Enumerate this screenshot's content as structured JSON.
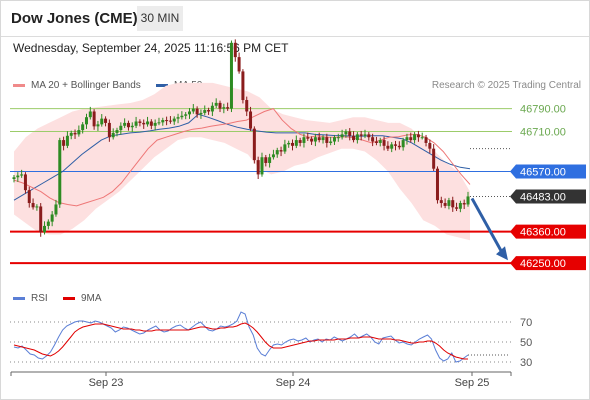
{
  "header": {
    "title": "Dow Jones (CME)",
    "timeframe": "30 MIN"
  },
  "datetime": "Wednesday, September 24, 2025 11:16:56 PM CET",
  "credit": "Research © 2025 Trading Central",
  "legend": [
    {
      "label": "MA 20 + Bollinger Bands",
      "color": "#f08a8a"
    },
    {
      "label": "MA 50",
      "color": "#2f5fa6"
    }
  ],
  "rsi_legend": [
    {
      "label": "RSI",
      "color": "#5b7fd6"
    },
    {
      "label": "9MA",
      "color": "#e00000"
    }
  ],
  "colors": {
    "bull": "#2e8b22",
    "bear": "#8a1c1c",
    "res_line": "#9ccc6a",
    "pivot": "#2f6fe0",
    "support": "#e60000",
    "bb_fill": "#fde0e0",
    "ma20": "#ee7777",
    "ma50": "#2f5fa6",
    "rsi": "#5b7fd6",
    "rsi_ma": "#e00000",
    "arrow": "#2f5fa6",
    "last": "#333333"
  },
  "chart_data": [
    {
      "type": "candlestick",
      "ylim": [
        46170,
        46890
      ],
      "x_labels": [
        "Sep 23",
        "Sep 24",
        "Sep 25"
      ],
      "levels": [
        {
          "label": "46790.00",
          "value": 46790,
          "kind": "resistance"
        },
        {
          "label": "46710.00",
          "value": 46710,
          "kind": "resistance"
        },
        {
          "label": "46570.00",
          "value": 46570,
          "kind": "pivot"
        },
        {
          "label": "46483.00",
          "value": 46483,
          "kind": "last"
        },
        {
          "label": "46360.00",
          "value": 46360,
          "kind": "support"
        },
        {
          "label": "46250.00",
          "value": 46250,
          "kind": "support"
        }
      ],
      "price": [
        46550,
        46556,
        46560,
        46505,
        46460,
        46445,
        46448,
        46358,
        46380,
        46395,
        46420,
        46455,
        46680,
        46660,
        46695,
        46705,
        46700,
        46715,
        46735,
        46760,
        46780,
        46728,
        46735,
        46755,
        46740,
        46690,
        46705,
        46715,
        46730,
        46740,
        46725,
        46730,
        46745,
        46740,
        46735,
        46745,
        46730,
        46740,
        46742,
        46750,
        46748,
        46745,
        46755,
        46760,
        46765,
        46770,
        46780,
        46790,
        46770,
        46775,
        46785,
        46780,
        46800,
        46810,
        46790,
        46795,
        46790,
        47020,
        46970,
        46920,
        46820,
        46780,
        46720,
        46610,
        46560,
        46620,
        46600,
        46620,
        46630,
        46645,
        46640,
        46665,
        46670,
        46660,
        46680,
        46670,
        46690,
        46685,
        46675,
        46690,
        46680,
        46690,
        46670,
        46675,
        46690,
        46690,
        46700,
        46710,
        46695,
        46680,
        46700,
        46695,
        46700,
        46690,
        46675,
        46670,
        46680,
        46660,
        46650,
        46665,
        46660,
        46655,
        46680,
        46690,
        46680,
        46700,
        46690,
        46690,
        46670,
        46650,
        46580,
        46470,
        46460,
        46450,
        46470,
        46445,
        46440,
        46460,
        46455,
        46483
      ],
      "ma20": [
        46540,
        46530,
        46515,
        46500,
        46478,
        46462,
        46455,
        46450,
        46460,
        46470,
        46480,
        46500,
        46530,
        46570,
        46610,
        46650,
        46680,
        46690,
        46700,
        46710,
        46718,
        46722,
        46728,
        46733,
        46738,
        46745,
        46750,
        46765,
        46780,
        46790,
        46750,
        46720,
        46700,
        46690,
        46695,
        46690,
        46690,
        46692,
        46688,
        46680,
        46670,
        46680,
        46690,
        46692,
        46698,
        46700,
        46690,
        46670,
        46640,
        46600,
        46560,
        46525
      ],
      "ma50": [
        46470,
        46490,
        46510,
        46530,
        46550,
        46570,
        46600,
        46630,
        46655,
        46680,
        46695,
        46700,
        46705,
        46708,
        46712,
        46718,
        46722,
        46728,
        46740,
        46770,
        46760,
        46748,
        46735,
        46725,
        46718,
        46712,
        46708,
        46705,
        46705,
        46705,
        46705,
        46700,
        46698,
        46696,
        46695,
        46694,
        46694,
        46695,
        46695,
        46690,
        46685,
        46670,
        46650,
        46630,
        46610,
        46595,
        46585,
        46580
      ],
      "bb_upper": [
        46640,
        46690,
        46720,
        46740,
        46760,
        46780,
        46790,
        46795,
        46800,
        46805,
        46810,
        46820,
        46840,
        46870,
        46880,
        46880,
        46880,
        46880,
        46870,
        46860,
        46850,
        46830,
        46790,
        46770,
        46760,
        46750,
        46745,
        46740,
        46750,
        46760,
        46760,
        46750,
        46740,
        46740,
        46720,
        46680,
        46640,
        46600,
        46570,
        46500
      ],
      "bb_lower": [
        46420,
        46390,
        46360,
        46350,
        46350,
        46370,
        46400,
        46440,
        46470,
        46500,
        46540,
        46580,
        46620,
        46650,
        46680,
        46690,
        46690,
        46680,
        46670,
        46650,
        46630,
        46580,
        46560,
        46570,
        46590,
        46600,
        46620,
        46635,
        46650,
        46650,
        46640,
        46610,
        46570,
        46510,
        46460,
        46400,
        46380,
        46350,
        46340,
        46330
      ]
    },
    {
      "type": "line",
      "ylim": [
        20,
        80
      ],
      "yticks": [
        70,
        50,
        30
      ],
      "rsi": [
        45,
        44,
        46,
        42,
        38,
        37,
        34,
        33,
        36,
        40,
        47,
        55,
        62,
        66,
        68,
        70,
        71,
        71,
        70,
        69,
        71,
        70,
        68,
        66,
        64,
        60,
        62,
        65,
        64,
        62,
        60,
        58,
        59,
        62,
        64,
        66,
        62,
        60,
        61,
        64,
        66,
        67,
        64,
        62,
        65,
        68,
        70,
        66,
        62,
        61,
        63,
        66,
        65,
        66,
        68,
        71,
        80,
        78,
        65,
        57,
        44,
        38,
        36,
        42,
        47,
        48,
        47,
        50,
        52,
        53,
        51,
        52,
        54,
        50,
        52,
        53,
        50,
        53,
        52,
        55,
        53,
        51,
        53,
        55,
        58,
        54,
        56,
        58,
        55,
        50,
        48,
        54,
        55,
        56,
        52,
        49,
        50,
        48,
        47,
        50,
        53,
        55,
        57,
        53,
        42,
        34,
        31,
        33,
        39,
        30,
        31,
        34,
        37
      ],
      "rsi_ma": [
        47,
        46,
        45,
        44,
        43,
        42,
        40,
        38,
        37,
        36,
        38,
        41,
        45,
        50,
        55,
        60,
        63,
        65,
        66,
        67,
        68,
        68,
        68,
        67,
        66,
        65,
        64,
        63,
        63,
        63,
        62,
        62,
        61,
        61,
        61,
        62,
        62,
        62,
        62,
        62,
        62,
        62,
        62,
        62,
        63,
        64,
        65,
        65,
        64,
        63,
        63,
        64,
        64,
        65,
        65,
        66,
        68,
        69,
        67,
        64,
        60,
        55,
        50,
        46,
        44,
        44,
        44,
        45,
        46,
        47,
        48,
        49,
        50,
        51,
        51,
        52,
        52,
        52,
        52,
        52,
        53,
        53,
        53,
        54,
        54,
        54,
        55,
        55,
        55,
        54,
        53,
        53,
        53,
        53,
        52,
        52,
        51,
        50,
        49,
        49,
        50,
        50,
        51,
        51,
        49,
        46,
        42,
        39,
        37,
        35,
        34,
        33,
        33
      ]
    }
  ]
}
